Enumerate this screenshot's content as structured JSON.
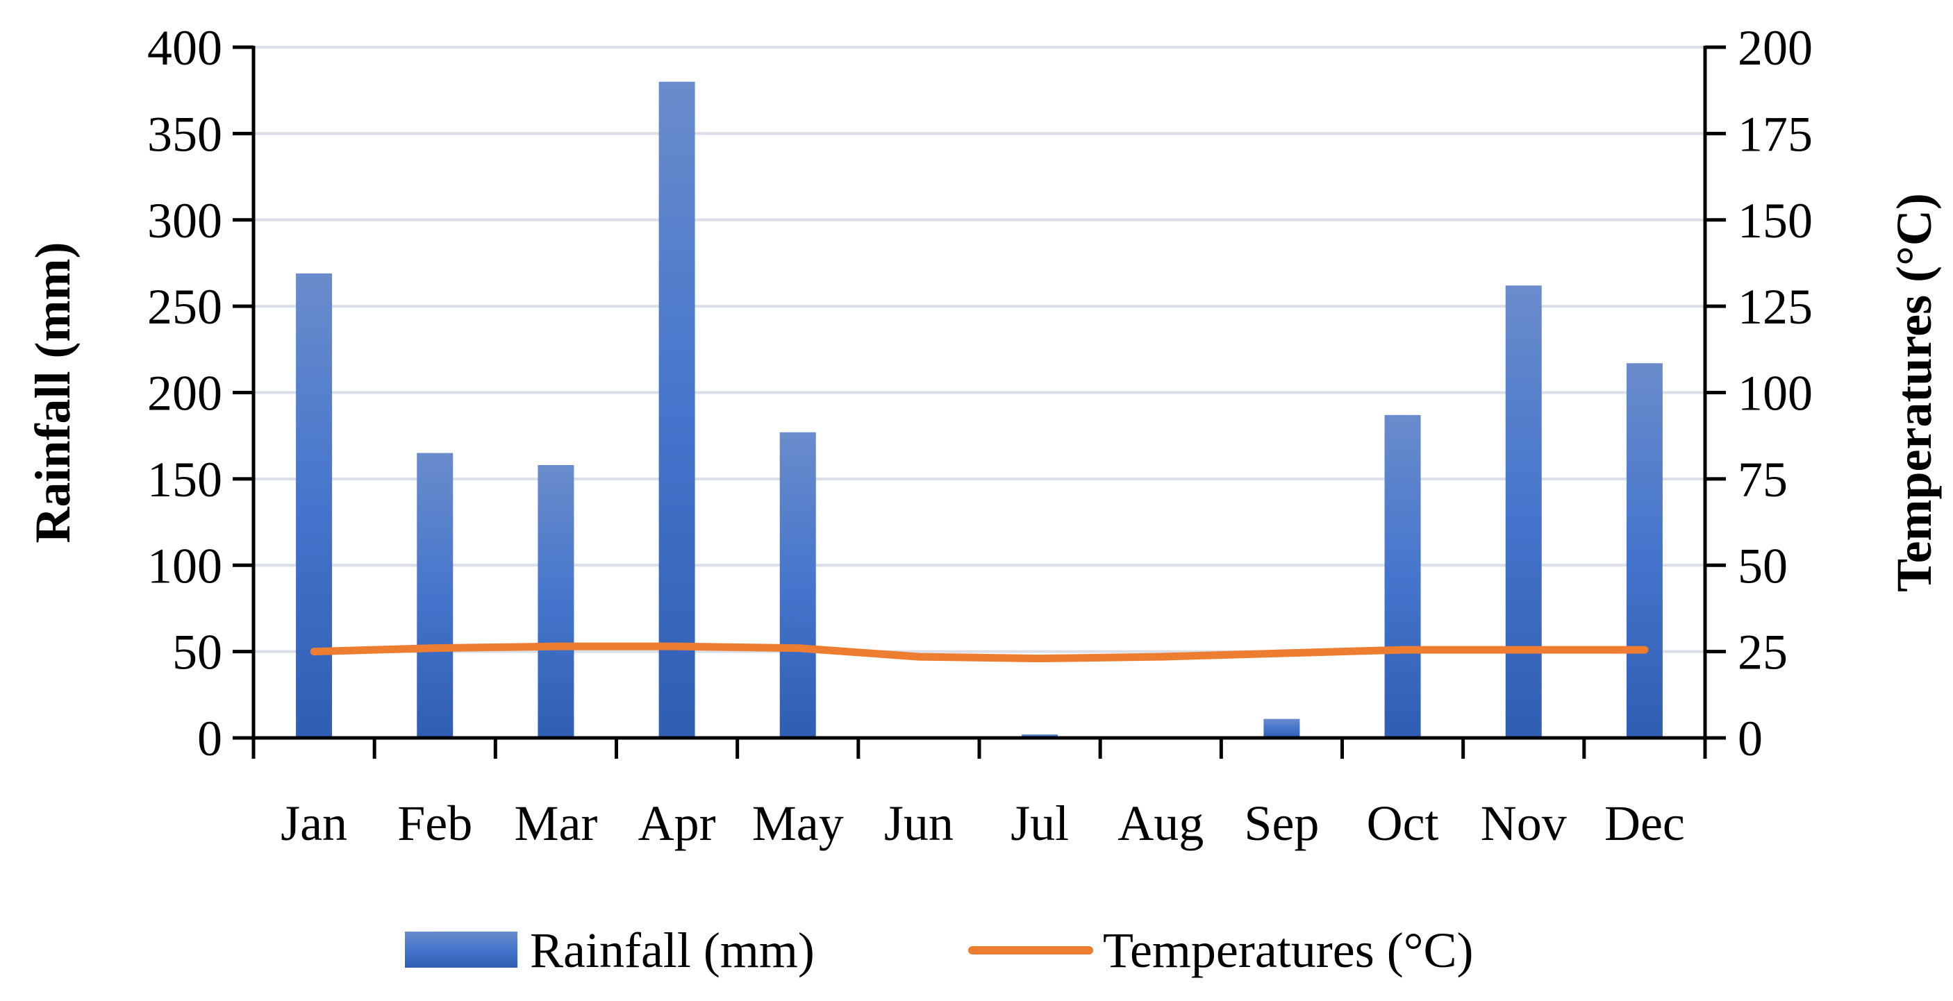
{
  "chart_data": {
    "type": "bar",
    "categories": [
      "Jan",
      "Feb",
      "Mar",
      "Apr",
      "May",
      "Jun",
      "Jul",
      "Aug",
      "Sep",
      "Oct",
      "Nov",
      "Dec"
    ],
    "series": [
      {
        "name": "Rainfall (mm)",
        "kind": "bar",
        "axis": "left",
        "color": "#4472C4",
        "values": [
          269,
          165,
          158,
          380,
          177,
          0,
          2,
          0,
          11,
          187,
          262,
          217
        ]
      },
      {
        "name": "Temperatures (°C)",
        "kind": "line",
        "axis": "right",
        "color": "#ED7D31",
        "values": [
          25,
          26,
          26.5,
          26.5,
          26,
          23.5,
          23,
          23.5,
          24.5,
          25.5,
          25.5,
          25.5
        ]
      }
    ],
    "ylabel": "Rainfall (mm)",
    "ylabel_right": "Temperatures (°C)",
    "ylim": [
      0,
      400
    ],
    "yticks": [
      0,
      50,
      100,
      150,
      200,
      250,
      300,
      350,
      400
    ],
    "ylim_right": [
      0,
      200
    ],
    "yticks_right": [
      0,
      25,
      50,
      75,
      100,
      125,
      150,
      175,
      200
    ],
    "grid": true,
    "legend": "bottom"
  }
}
